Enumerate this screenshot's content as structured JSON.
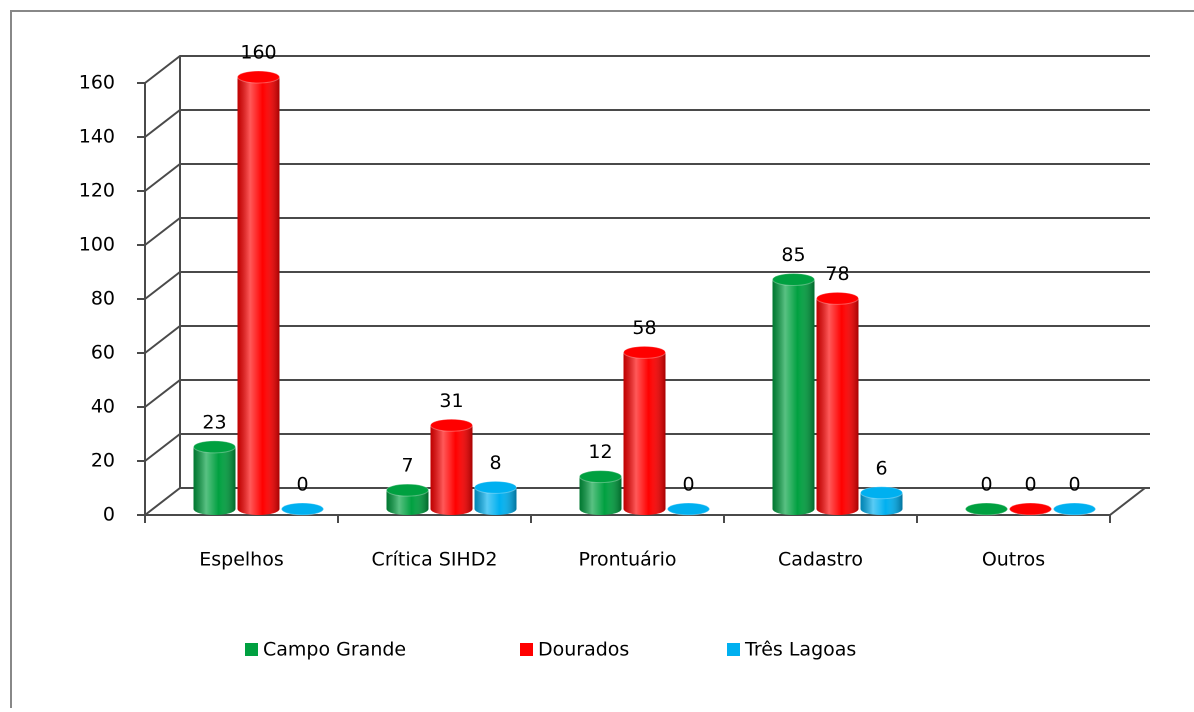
{
  "chart_data": {
    "type": "bar3d",
    "categories": [
      "Espelhos",
      "Crítica SIHD2",
      "Prontuário",
      "Cadastro",
      "Outros"
    ],
    "series": [
      {
        "name": "Campo Grande",
        "color": "#00a040",
        "values": [
          23,
          7,
          12,
          85,
          0
        ]
      },
      {
        "name": "Dourados",
        "color": "#ff0000",
        "values": [
          160,
          31,
          58,
          78,
          0
        ]
      },
      {
        "name": "Três Lagoas",
        "color": "#00b0f0",
        "values": [
          0,
          8,
          0,
          6,
          0
        ]
      }
    ],
    "ylim": [
      0,
      160
    ],
    "yticks": [
      0,
      20,
      40,
      60,
      80,
      100,
      120,
      140,
      160
    ],
    "grid": true,
    "legend": "bottom"
  }
}
